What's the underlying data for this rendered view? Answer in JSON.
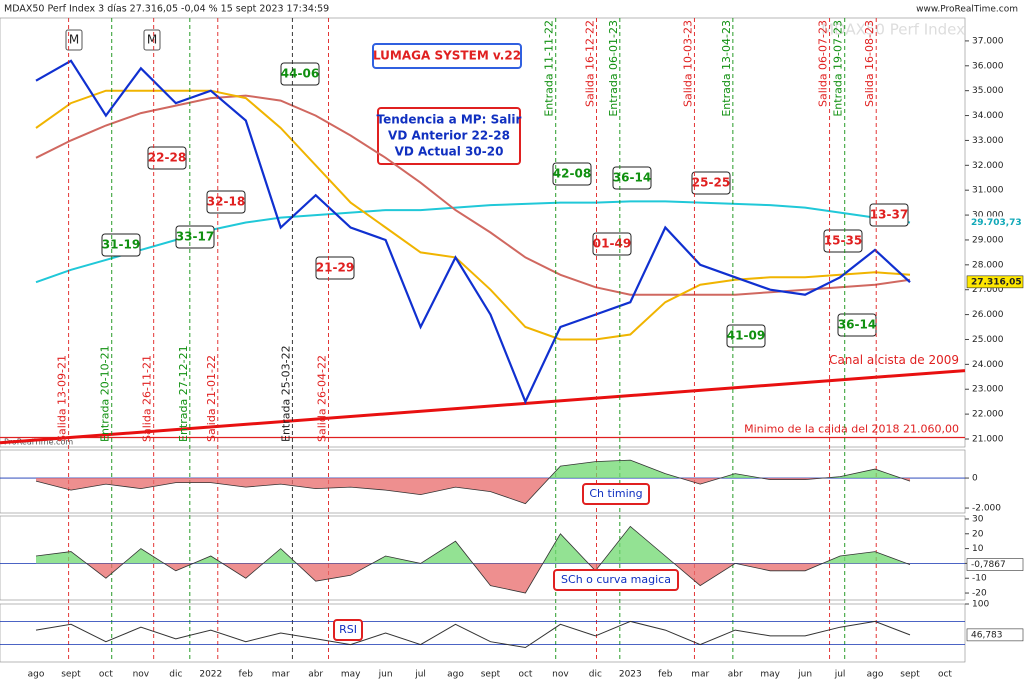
{
  "chart_data": [
    {
      "type": "line",
      "title": "MDAX50 Perf Index 3 días 27.316,05 -0,04 % 15 sept 2023 17:34:59",
      "source": "www.ProRealTime.com",
      "watermark": "MDAX50 Perf Index",
      "footer_source": "ProRealTime.com",
      "system": "LUMAGA SYSTEM v.22",
      "note": [
        "Tendencia a MP: Salir",
        "VD Anterior 22-28",
        "VD Actual 30-20"
      ],
      "categories": [
        "ago",
        "sept",
        "oct",
        "nov",
        "dic",
        "2022",
        "feb",
        "mar",
        "abr",
        "may",
        "jun",
        "jul",
        "ago",
        "sept",
        "oct",
        "nov",
        "dic",
        "2023",
        "feb",
        "mar",
        "abr",
        "may",
        "jun",
        "jul",
        "ago",
        "sept",
        "oct"
      ],
      "series": [
        {
          "color": "#20c8d8",
          "values": [
            27300,
            27800,
            28200,
            28600,
            29000,
            29400,
            29700,
            29900,
            30000,
            30100,
            30200,
            30200,
            30300,
            30400,
            30450,
            30500,
            30500,
            30550,
            30550,
            30500,
            30450,
            30400,
            30300,
            30100,
            29900,
            29700,
            null
          ]
        },
        {
          "color": "#d06860",
          "values": [
            32300,
            33000,
            33600,
            34100,
            34400,
            34700,
            34800,
            34600,
            34000,
            33200,
            32300,
            31300,
            30200,
            29300,
            28300,
            27600,
            27100,
            26800,
            26800,
            26800,
            26800,
            26900,
            27000,
            27100,
            27200,
            27400,
            null
          ]
        },
        {
          "color": "#f0b400",
          "values": [
            33500,
            34500,
            35000,
            35000,
            35000,
            35000,
            34700,
            33500,
            32000,
            30500,
            29500,
            28500,
            28300,
            27000,
            25500,
            25000,
            25000,
            25200,
            26500,
            27200,
            27400,
            27500,
            27500,
            27600,
            27700,
            27600,
            null
          ]
        },
        {
          "color": "#1030d0",
          "values": [
            35400,
            36200,
            34000,
            35900,
            34500,
            35000,
            33800,
            29500,
            30800,
            29500,
            29000,
            25500,
            28300,
            26000,
            22500,
            25500,
            26000,
            26500,
            29500,
            28000,
            27500,
            27000,
            26800,
            27500,
            28600,
            27300,
            null
          ]
        }
      ],
      "last_labels": [
        {
          "value": 29703.73,
          "label": "29.703,73"
        },
        {
          "value": 27316.05,
          "label": "27.316,05"
        }
      ],
      "channel": {
        "label": "Canal alcista de 2009",
        "values": [
          20850,
          23750
        ]
      },
      "support": {
        "value": 21060,
        "label": "Minimo de la caida del 2018 21.060,00"
      },
      "markers": [
        "M",
        "M"
      ],
      "signals": [
        {
          "label": "Salida 13-09-21",
          "color": "#e02020"
        },
        {
          "label": "Entrada 20-10-21",
          "color": "#109010"
        },
        {
          "label": "Salida 26-11-21",
          "color": "#e02020"
        },
        {
          "label": "Entrada 27-12-21",
          "color": "#109010"
        },
        {
          "label": "Salida 21-01-22",
          "color": "#e02020"
        },
        {
          "label": "Entrada 25-03-22",
          "color": "#222222"
        },
        {
          "label": "Salida 26-04-22",
          "color": "#e02020"
        },
        {
          "label": "Entrada 11-11-22",
          "color": "#109010"
        },
        {
          "label": "Salida 16-12-22",
          "color": "#e02020"
        },
        {
          "label": "Entrada 06-01-23",
          "color": "#109010"
        },
        {
          "label": "Salida 10-03-23",
          "color": "#e02020"
        },
        {
          "label": "Entrada 13-04-23",
          "color": "#109010"
        },
        {
          "label": "Salida 06-07-23",
          "color": "#e02020"
        },
        {
          "label": "Entrada 19-07-23",
          "color": "#109010"
        },
        {
          "label": "Salida 16-08-23",
          "color": "#e02020"
        }
      ],
      "scores": [
        {
          "label": "44-06",
          "color": "#109010"
        },
        {
          "label": "22-28",
          "color": "#e02020"
        },
        {
          "label": "32-18",
          "color": "#e02020"
        },
        {
          "label": "31-19",
          "color": "#109010"
        },
        {
          "label": "33-17",
          "color": "#109010"
        },
        {
          "label": "21-29",
          "color": "#e02020"
        },
        {
          "label": "42-08",
          "color": "#109010"
        },
        {
          "label": "36-14",
          "color": "#109010"
        },
        {
          "label": "01-49",
          "color": "#e02020"
        },
        {
          "label": "25-25",
          "color": "#e02020"
        },
        {
          "label": "41-09",
          "color": "#109010"
        },
        {
          "label": "15-35",
          "color": "#e02020"
        },
        {
          "label": "13-37",
          "color": "#e02020"
        },
        {
          "label": "36-14",
          "color": "#109010"
        }
      ],
      "ylim": [
        20678,
        37921
      ],
      "yticks": [
        {
          "value": 21000,
          "label": "21.000"
        },
        {
          "value": 22000,
          "label": "22.000"
        },
        {
          "value": 23000,
          "label": "23.000"
        },
        {
          "value": 24000,
          "label": "24.000"
        },
        {
          "value": 25000,
          "label": "25.000"
        },
        {
          "value": 26000,
          "label": "26.000"
        },
        {
          "value": 27000,
          "label": "27.000"
        },
        {
          "value": 28000,
          "label": "28.000"
        },
        {
          "value": 29000,
          "label": "29.000"
        },
        {
          "value": 30000,
          "label": "30.000"
        },
        {
          "value": 31000,
          "label": "31.000"
        },
        {
          "value": 32000,
          "label": "32.000"
        },
        {
          "value": 33000,
          "label": "33.000"
        },
        {
          "value": 34000,
          "label": "34.000"
        },
        {
          "value": 35000,
          "label": "35.000"
        },
        {
          "value": 36000,
          "label": "36.000"
        },
        {
          "value": 37000,
          "label": "37.000"
        }
      ]
    },
    {
      "type": "area",
      "title": "Ch timing",
      "values": [
        -200,
        -800,
        -400,
        -700,
        -300,
        -300,
        -600,
        -400,
        -700,
        -600,
        -800,
        -1100,
        -600,
        -900,
        -1700,
        800,
        1100,
        1200,
        300,
        -400,
        300,
        -100,
        -100,
        100,
        600,
        -200,
        null
      ],
      "ylim": [
        -2330,
        1870
      ],
      "yticks": [
        0,
        {
          "value": -2000,
          "label": "-2.000"
        }
      ]
    },
    {
      "type": "area",
      "title": "SCh o curva magica",
      "values": [
        5,
        8,
        -10,
        10,
        -5,
        5,
        -10,
        10,
        -12,
        -8,
        5,
        0,
        15,
        -15,
        -20,
        20,
        -5,
        25,
        5,
        -15,
        0,
        -5,
        -5,
        5,
        8,
        -0.7867,
        null
      ],
      "ylim": [
        -24.7,
        32
      ],
      "yticks": [
        30,
        20,
        10,
        0,
        -10,
        -20
      ],
      "last_label": {
        "value": -0.7867,
        "label": "-0,7867"
      }
    },
    {
      "type": "line",
      "title": "RSI",
      "values": [
        55,
        65,
        35,
        60,
        40,
        55,
        35,
        50,
        40,
        30,
        50,
        30,
        65,
        35,
        25,
        65,
        45,
        70,
        55,
        30,
        55,
        45,
        45,
        60,
        70,
        46.783,
        null
      ],
      "ylim": [
        0,
        100
      ],
      "yticks": [
        100
      ],
      "levels": [
        70,
        30
      ],
      "last_label": {
        "value": 46.783,
        "label": "46,783"
      }
    }
  ]
}
